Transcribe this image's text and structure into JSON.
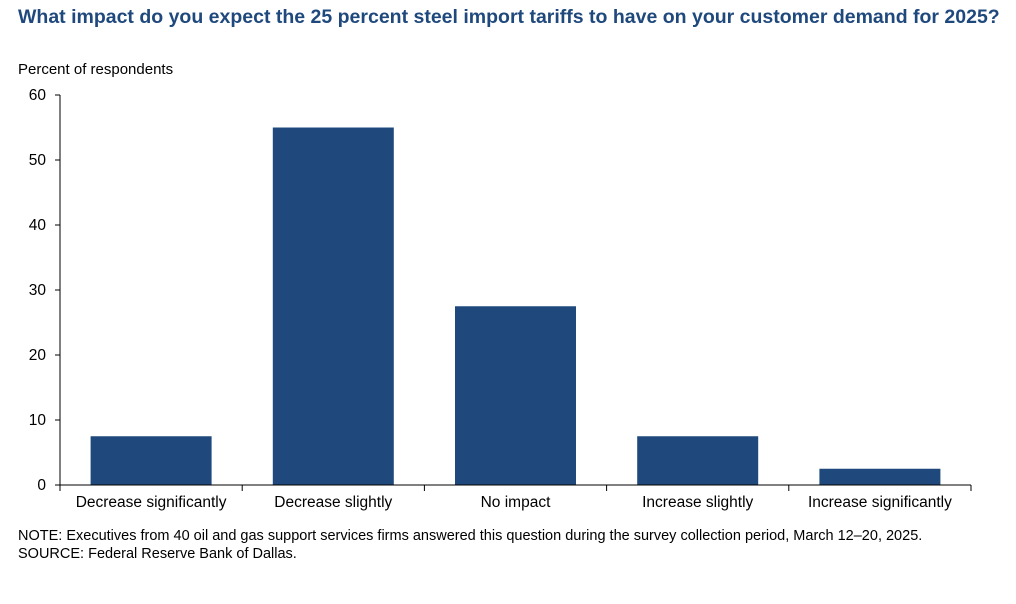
{
  "chart_data": {
    "type": "bar",
    "title": "What impact do you expect the 25 percent steel import tariffs to have on your customer demand for 2025?",
    "ylabel": "Percent of respondents",
    "xlabel": "",
    "categories": [
      "Decrease significantly",
      "Decrease slightly",
      "No impact",
      "Increase slightly",
      "Increase significantly"
    ],
    "values": [
      7.5,
      55,
      27.5,
      7.5,
      2.5
    ],
    "ylim": [
      0,
      60
    ],
    "yticks": [
      0,
      10,
      20,
      30,
      40,
      50,
      60
    ],
    "grid": false,
    "bar_color": "#1f497d"
  },
  "footer": {
    "note": "NOTE:  Executives from 40 oil and gas support services firms answered this question during the survey collection period, March 12–20, 2025.",
    "source": "SOURCE:  Federal Reserve Bank of Dallas."
  }
}
